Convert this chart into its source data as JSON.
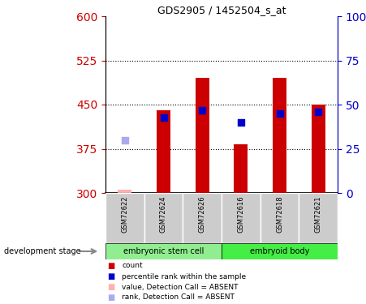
{
  "title": "GDS2905 / 1452504_s_at",
  "samples": [
    "GSM72622",
    "GSM72624",
    "GSM72626",
    "GSM72616",
    "GSM72618",
    "GSM72621"
  ],
  "group1_name": "embryonic stem cell",
  "group2_name": "embryoid body",
  "group1_color": "#90EE90",
  "group2_color": "#44EE44",
  "ylim_left": [
    300,
    600
  ],
  "ylim_right": [
    0,
    100
  ],
  "yticks_left": [
    300,
    375,
    450,
    525,
    600
  ],
  "yticks_right": [
    0,
    25,
    50,
    75,
    100
  ],
  "ytick_labels_right": [
    "0",
    "25",
    "50",
    "75",
    "100%"
  ],
  "bar_baseline": 300,
  "bar_color_present": "#CC0000",
  "bar_color_absent": "#FFB0B0",
  "rank_color_present": "#0000CC",
  "rank_color_absent": "#AAAAEE",
  "bar_heights": [
    306,
    440,
    495,
    383,
    495,
    450
  ],
  "absent_bars": [
    true,
    false,
    false,
    false,
    false,
    false
  ],
  "rank_values": [
    390,
    428,
    440,
    420,
    435,
    437
  ],
  "absent_ranks": [
    true,
    false,
    false,
    false,
    false,
    false
  ],
  "bar_width": 0.35,
  "rank_marker_size": 40,
  "grid_yticks": [
    375,
    450,
    525
  ],
  "grid_color": "#000000",
  "bg_color_fig": "#FFFFFF",
  "left_axis_color": "#CC0000",
  "right_axis_color": "#0000CC",
  "sample_row_bg": "#CCCCCC",
  "legend_items": [
    {
      "label": "count",
      "color": "#CC0000"
    },
    {
      "label": "percentile rank within the sample",
      "color": "#0000CC"
    },
    {
      "label": "value, Detection Call = ABSENT",
      "color": "#FFB0B0"
    },
    {
      "label": "rank, Detection Call = ABSENT",
      "color": "#AAAAEE"
    }
  ],
  "dev_stage_label": "development stage"
}
